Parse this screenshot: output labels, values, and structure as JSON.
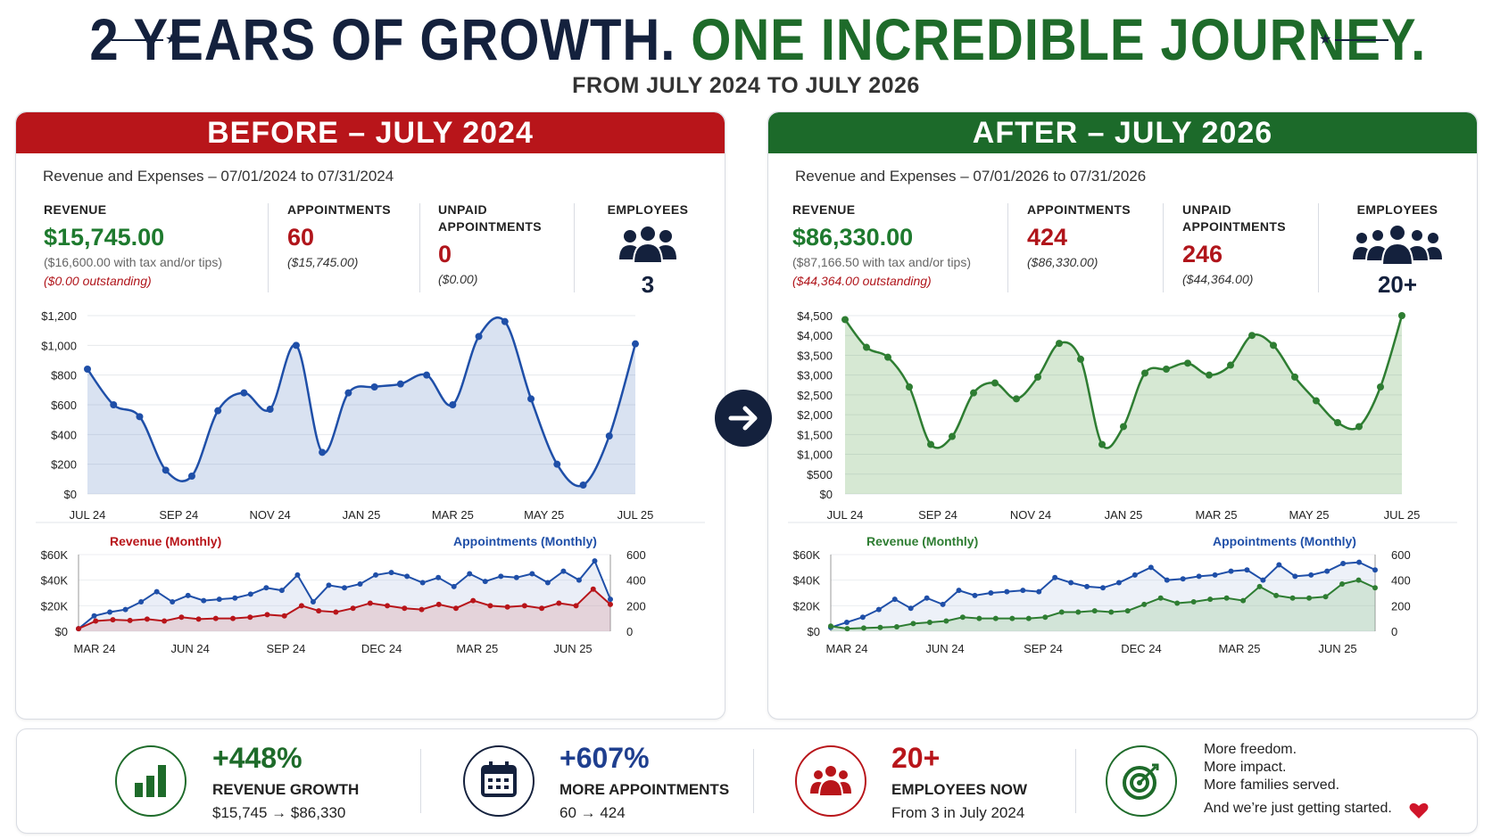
{
  "header": {
    "title_part1": "2 YEARS OF GROWTH.",
    "title_part2": "ONE INCREDIBLE JOURNEY.",
    "subtitle": "FROM JULY 2024 TO JULY 2026"
  },
  "before": {
    "heading": "BEFORE – JULY 2024",
    "range": "Revenue and Expenses – 07/01/2024 to 07/31/2024",
    "revenue_label": "REVENUE",
    "revenue_value": "$15,745.00",
    "revenue_note": "($16,600.00 with tax and/or tips)",
    "revenue_outstanding": "($0.00 outstanding)",
    "appointments_label": "APPOINTMENTS",
    "appointments_value": "60",
    "appointments_note": "($15,745.00)",
    "unpaid_label_1": "UNPAID",
    "unpaid_label_2": "APPOINTMENTS",
    "unpaid_value": "0",
    "unpaid_note": "($0.00)",
    "employees_label": "EMPLOYEES",
    "employees_value": "3"
  },
  "after": {
    "heading": "AFTER – JULY 2026",
    "range": "Revenue and Expenses – 07/01/2026 to 07/31/2026",
    "revenue_label": "REVENUE",
    "revenue_value": "$86,330.00",
    "revenue_note": "($87,166.50 with tax and/or tips)",
    "revenue_outstanding": "($44,364.00 outstanding)",
    "appointments_label": "APPOINTMENTS",
    "appointments_value": "424",
    "appointments_note": "($86,330.00)",
    "unpaid_label_1": "UNPAID",
    "unpaid_label_2": "APPOINTMENTS",
    "unpaid_value": "246",
    "unpaid_note": "($44,364.00)",
    "employees_label": "EMPLOYEES",
    "employees_value": "20+"
  },
  "footer": {
    "growth_value": "+448%",
    "growth_label": "REVENUE GROWTH",
    "growth_sub": "$15,745 → $86,330",
    "appts_value": "+607%",
    "appts_label": "MORE APPOINTMENTS",
    "appts_sub": "60 → 424",
    "emp_value": "20+",
    "emp_label": "EMPLOYEES NOW",
    "emp_sub": "From 3 in July 2024",
    "line1": "More freedom.",
    "line2": "More impact.",
    "line3": "More families served.",
    "line4": "And we’re just getting started."
  },
  "colors": {
    "navy": "#14213d",
    "green": "#1e6b2a",
    "red": "#b8151a",
    "line_blue": "#1f4fa8",
    "line_green": "#2e7d32"
  },
  "chart_data": [
    {
      "id": "before_top",
      "type": "area",
      "x_ticks": [
        "JUL 24",
        "SEP 24",
        "NOV 24",
        "JAN 25",
        "MAR 25",
        "MAY 25",
        "JUL 25"
      ],
      "y_ticks": [
        "$0",
        "$200",
        "$400",
        "$600",
        "$800",
        "$1,000",
        "$1,200"
      ],
      "ylim": [
        0,
        1200
      ],
      "values": [
        840,
        600,
        520,
        160,
        120,
        560,
        680,
        570,
        1000,
        280,
        680,
        720,
        740,
        800,
        600,
        1060,
        1160,
        640,
        200,
        60,
        390,
        1010
      ],
      "grid": true
    },
    {
      "id": "after_top",
      "type": "area",
      "x_ticks": [
        "JUL 24",
        "SEP 24",
        "NOV 24",
        "JAN 25",
        "MAR 25",
        "MAY 25",
        "JUL 25"
      ],
      "y_ticks": [
        "$0",
        "$500",
        "$1,000",
        "$1,500",
        "$2,000",
        "$2,500",
        "$3,000",
        "$3,500",
        "$4,000",
        "$4,500"
      ],
      "ylim": [
        0,
        4500
      ],
      "values": [
        4400,
        3700,
        3450,
        2700,
        1250,
        1450,
        2550,
        2800,
        2400,
        2950,
        3800,
        3400,
        1250,
        1700,
        3050,
        3150,
        3300,
        3000,
        3250,
        4000,
        3750,
        2950,
        2350,
        1800,
        1700,
        2700,
        4500
      ],
      "grid": true
    },
    {
      "id": "before_bottom",
      "type": "line",
      "x_ticks": [
        "MAR 24",
        "JUN 24",
        "SEP 24",
        "DEC 24",
        "MAR 25",
        "JUN 25"
      ],
      "left_y_ticks": [
        "$0",
        "$20K",
        "$40K",
        "$60K"
      ],
      "right_y_ticks": [
        "0",
        "200",
        "400",
        "600"
      ],
      "series": [
        {
          "name": "Revenue (Monthly)",
          "axis": "left",
          "ylim": [
            0,
            60000
          ],
          "values": [
            2000,
            8000,
            9000,
            8500,
            9500,
            8000,
            11000,
            9500,
            10000,
            10000,
            11000,
            13000,
            12000,
            20000,
            16000,
            15000,
            18000,
            22000,
            20000,
            18000,
            17000,
            21000,
            18000,
            24000,
            20000,
            19000,
            20000,
            18000,
            22000,
            20000,
            33000,
            21000
          ]
        },
        {
          "name": "Appointments (Monthly)",
          "axis": "right",
          "ylim": [
            0,
            600
          ],
          "values": [
            20,
            120,
            150,
            170,
            230,
            310,
            230,
            280,
            240,
            250,
            260,
            290,
            340,
            320,
            440,
            230,
            360,
            340,
            370,
            440,
            460,
            430,
            380,
            420,
            350,
            450,
            390,
            430,
            420,
            450,
            380,
            470,
            400,
            550,
            250
          ]
        }
      ]
    },
    {
      "id": "after_bottom",
      "type": "line",
      "x_ticks": [
        "MAR 24",
        "JUN 24",
        "SEP 24",
        "DEC 24",
        "MAR 25",
        "JUN 25"
      ],
      "left_y_ticks": [
        "$0",
        "$20K",
        "$40K",
        "$60K"
      ],
      "right_y_ticks": [
        "0",
        "200",
        "400",
        "600"
      ],
      "series": [
        {
          "name": "Revenue (Monthly)",
          "axis": "left",
          "ylim": [
            0,
            60000
          ],
          "values": [
            4000,
            2000,
            2500,
            3000,
            3500,
            6000,
            7000,
            8000,
            11000,
            10000,
            10000,
            10000,
            10000,
            11000,
            15000,
            15000,
            16000,
            15000,
            16000,
            21000,
            26000,
            22000,
            23000,
            25000,
            26000,
            24000,
            35000,
            28000,
            26000,
            26000,
            27000,
            37000,
            40000,
            34000
          ]
        },
        {
          "name": "Appointments (Monthly)",
          "axis": "right",
          "ylim": [
            0,
            600
          ],
          "values": [
            30,
            70,
            110,
            170,
            250,
            180,
            260,
            210,
            320,
            280,
            300,
            310,
            320,
            310,
            420,
            380,
            350,
            340,
            380,
            440,
            500,
            400,
            410,
            430,
            440,
            470,
            480,
            400,
            520,
            430,
            440,
            470,
            530,
            540,
            480
          ]
        }
      ]
    }
  ]
}
